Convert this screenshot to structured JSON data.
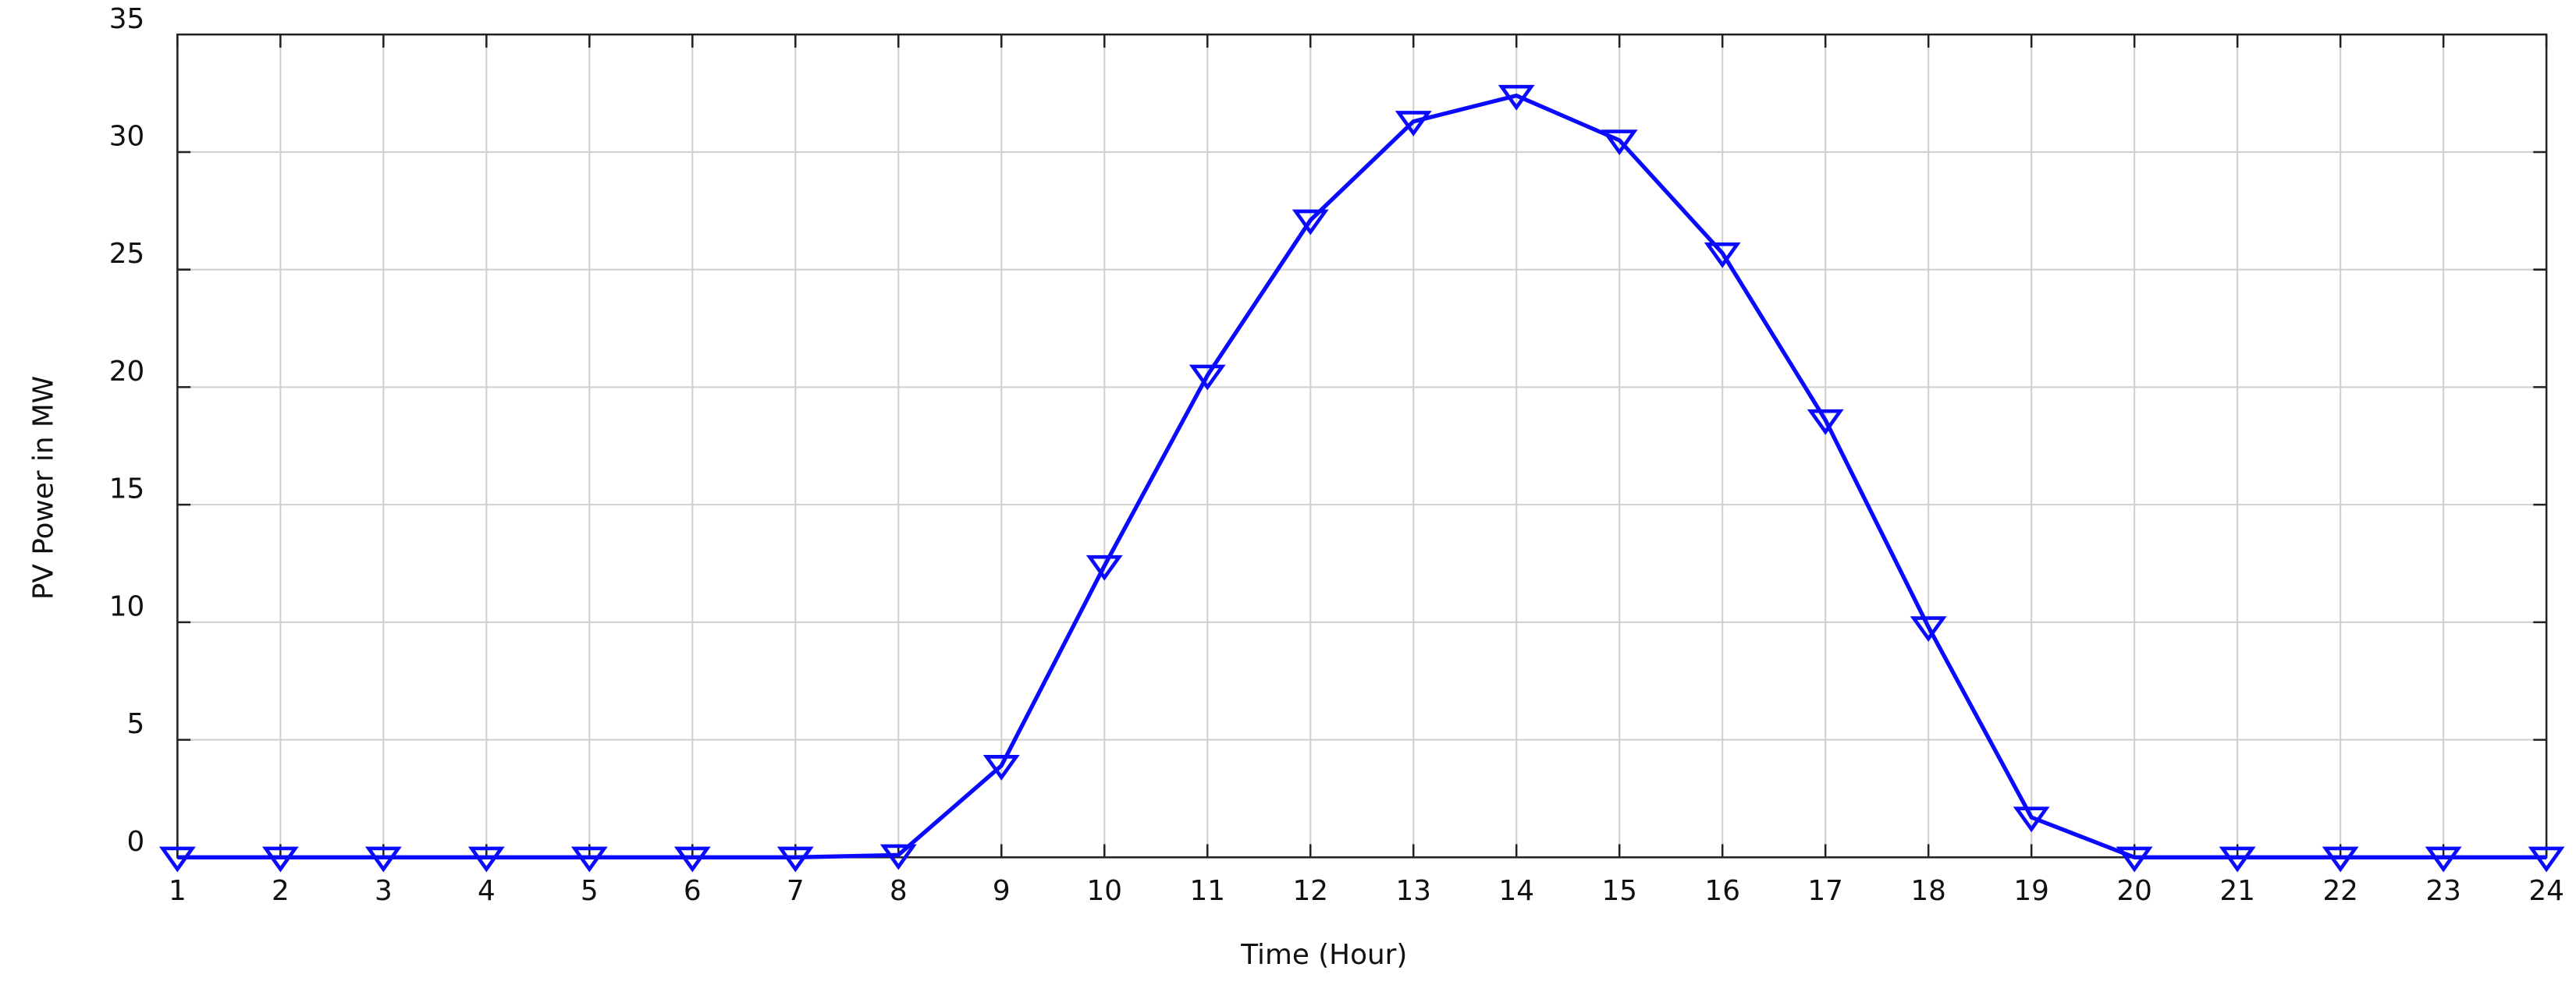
{
  "chart_data": {
    "type": "line",
    "x_label": "Time (Hour)",
    "y_label": "PV Power in MW",
    "x": [
      1,
      2,
      3,
      4,
      5,
      6,
      7,
      8,
      9,
      10,
      11,
      12,
      13,
      14,
      15,
      16,
      17,
      18,
      19,
      20,
      21,
      22,
      23,
      24
    ],
    "series": [
      {
        "color": "#0a0aff",
        "marker": "triangle-down",
        "values": [
          0,
          0,
          0,
          0,
          0,
          0,
          0,
          0.1,
          3.9,
          12.4,
          20.5,
          27.1,
          31.3,
          32.4,
          30.5,
          25.7,
          18.6,
          9.8,
          1.7,
          0,
          0,
          0,
          0,
          0
        ]
      }
    ],
    "xlim": [
      1,
      24
    ],
    "xticks": [
      1,
      2,
      3,
      4,
      5,
      6,
      7,
      8,
      9,
      10,
      11,
      12,
      13,
      14,
      15,
      16,
      17,
      18,
      19,
      20,
      21,
      22,
      23,
      24
    ],
    "ylim": [
      0,
      35
    ],
    "yticks": [
      0,
      5,
      10,
      15,
      20,
      25,
      30,
      35
    ],
    "grid": true
  }
}
